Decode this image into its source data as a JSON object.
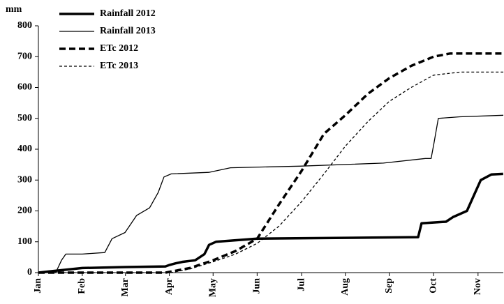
{
  "chart_data": {
    "type": "line",
    "y_label": "mm",
    "xlim": [
      0,
      322
    ],
    "xticks": [
      {
        "value": 0,
        "label": "Jan"
      },
      {
        "value": 30.4,
        "label": "Feb"
      },
      {
        "value": 60.3,
        "label": "Mar"
      },
      {
        "value": 90.7,
        "label": "Apr"
      },
      {
        "value": 121,
        "label": "May"
      },
      {
        "value": 151.5,
        "label": "Jun"
      },
      {
        "value": 182.3,
        "label": "Jul"
      },
      {
        "value": 212.6,
        "label": "Aug"
      },
      {
        "value": 243,
        "label": "Sep"
      },
      {
        "value": 273.7,
        "label": "Oct"
      },
      {
        "value": 304.5,
        "label": "Nov"
      }
    ],
    "ylim": [
      0,
      800
    ],
    "yticks": [
      0,
      100,
      200,
      300,
      400,
      500,
      600,
      700,
      800
    ],
    "grid": false,
    "legend": "top-left",
    "series": [
      {
        "name": "Rainfall 2012",
        "color": "#000000",
        "width": 3.5,
        "dash": false,
        "x": [
          0,
          10,
          30.4,
          60.3,
          88,
          91,
          95,
          100,
          108.6,
          115,
          118.2,
          123,
          151.5,
          263,
          265.4,
          282.3,
          287.1,
          296.8,
          301.6,
          306.4,
          313.7,
          321.9
        ],
        "values": [
          0,
          5,
          15,
          18,
          20,
          25,
          30,
          35,
          40,
          60,
          90,
          100,
          110,
          115,
          160,
          165,
          180,
          200,
          250,
          300,
          318,
          320
        ]
      },
      {
        "name": "Rainfall 2013",
        "color": "#000000",
        "width": 1.3,
        "dash": false,
        "x": [
          0,
          12,
          16,
          19,
          30.4,
          46,
          51,
          60,
          68,
          77,
          83,
          87,
          92,
          118,
          133,
          181,
          239,
          268,
          272,
          274,
          277,
          292,
          322
        ],
        "values": [
          0,
          0,
          40,
          60,
          60,
          65,
          110,
          130,
          185,
          210,
          260,
          310,
          320,
          325,
          340,
          345,
          355,
          370,
          370,
          420,
          500,
          505,
          510
        ]
      },
      {
        "name": "ETc 2012",
        "color": "#000000",
        "width": 3.5,
        "dash": true,
        "x": [
          0,
          88,
          105,
          121,
          136.6,
          151.5,
          166.5,
          182.3,
          197.8,
          212.6,
          228.3,
          243,
          258.2,
          273.7,
          285,
          322
        ],
        "values": [
          0,
          0,
          15,
          40,
          70,
          110,
          220,
          330,
          450,
          510,
          580,
          630,
          670,
          700,
          710,
          710
        ]
      },
      {
        "name": "ETc 2013",
        "color": "#000000",
        "width": 1.3,
        "dash": true,
        "x": [
          0,
          92,
          105,
          121,
          136.6,
          151.5,
          166.5,
          182.3,
          197.8,
          212.6,
          228.3,
          243,
          258.2,
          273.7,
          292,
          322
        ],
        "values": [
          0,
          0,
          12,
          35,
          60,
          95,
          150,
          230,
          320,
          410,
          490,
          555,
          600,
          640,
          650,
          650
        ]
      }
    ]
  }
}
